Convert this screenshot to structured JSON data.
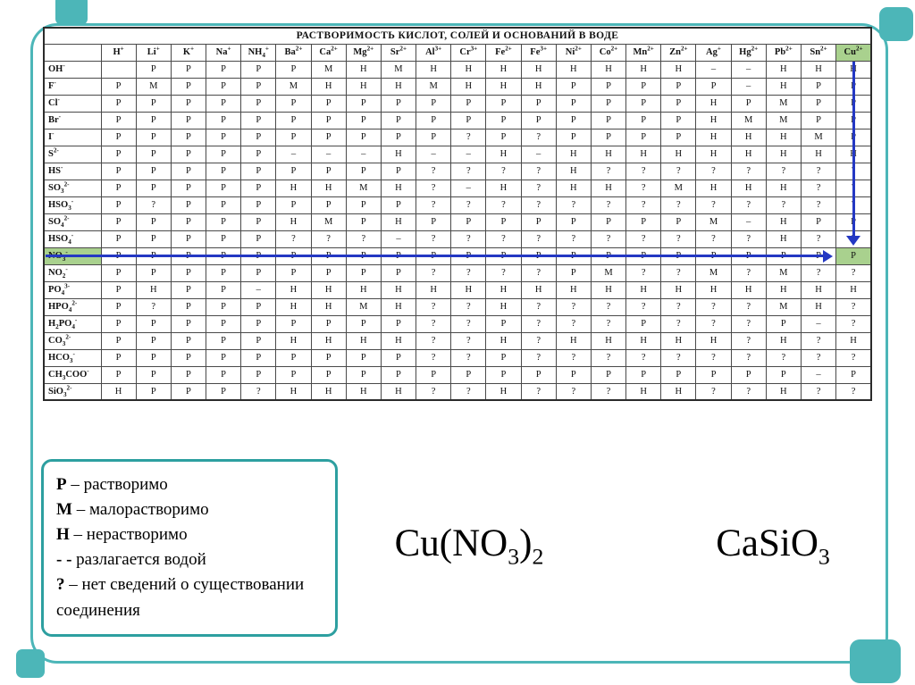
{
  "table": {
    "title": "РАСТВОРИМОСТЬ КИСЛОТ, СОЛЕЙ И ОСНОВАНИЙ В ВОДЕ",
    "columns": [
      "H^+^",
      "Li^+^",
      "K^+^",
      "Na^+^",
      "NH_4_^+^",
      "Ba^2+^",
      "Ca^2+^",
      "Mg^2+^",
      "Sr^2+^",
      "Al^3+^",
      "Cr^3+^",
      "Fe^2+^",
      "Fe^3+^",
      "Ni^2+^",
      "Co^2+^",
      "Mn^2+^",
      "Zn^2+^",
      "Ag^+^",
      "Hg^2+^",
      "Pb^2+^",
      "Sn^2+^",
      "Cu^2+^"
    ],
    "rows": [
      {
        "label": "OH^-^",
        "cells": [
          "",
          "Р",
          "Р",
          "Р",
          "Р",
          "Р",
          "М",
          "Н",
          "М",
          "Н",
          "Н",
          "Н",
          "Н",
          "Н",
          "Н",
          "Н",
          "Н",
          "–",
          "–",
          "Н",
          "Н",
          "Н"
        ]
      },
      {
        "label": "F^-^",
        "cells": [
          "Р",
          "М",
          "Р",
          "Р",
          "Р",
          "М",
          "Н",
          "Н",
          "Н",
          "М",
          "Н",
          "Н",
          "Н",
          "Р",
          "Р",
          "Р",
          "Р",
          "Р",
          "–",
          "Н",
          "Р",
          "Р"
        ]
      },
      {
        "label": "Cl^-^",
        "cells": [
          "Р",
          "Р",
          "Р",
          "Р",
          "Р",
          "Р",
          "Р",
          "Р",
          "Р",
          "Р",
          "Р",
          "Р",
          "Р",
          "Р",
          "Р",
          "Р",
          "Р",
          "Н",
          "Р",
          "М",
          "Р",
          "Р"
        ]
      },
      {
        "label": "Br^-^",
        "cells": [
          "Р",
          "Р",
          "Р",
          "Р",
          "Р",
          "Р",
          "Р",
          "Р",
          "Р",
          "Р",
          "Р",
          "Р",
          "Р",
          "Р",
          "Р",
          "Р",
          "Р",
          "Н",
          "М",
          "М",
          "Р",
          "Р"
        ]
      },
      {
        "label": "I^-^",
        "cells": [
          "Р",
          "Р",
          "Р",
          "Р",
          "Р",
          "Р",
          "Р",
          "Р",
          "Р",
          "Р",
          "?",
          "Р",
          "?",
          "Р",
          "Р",
          "Р",
          "Р",
          "Н",
          "Н",
          "Н",
          "М",
          "Р"
        ]
      },
      {
        "label": "S^2-^",
        "cells": [
          "Р",
          "Р",
          "Р",
          "Р",
          "Р",
          "–",
          "–",
          "–",
          "Н",
          "–",
          "–",
          "Н",
          "–",
          "Н",
          "Н",
          "Н",
          "Н",
          "Н",
          "Н",
          "Н",
          "Н",
          "Н"
        ]
      },
      {
        "label": "HS^-^",
        "cells": [
          "Р",
          "Р",
          "Р",
          "Р",
          "Р",
          "Р",
          "Р",
          "Р",
          "Р",
          "?",
          "?",
          "?",
          "?",
          "Н",
          "?",
          "?",
          "?",
          "?",
          "?",
          "?",
          "?",
          "?"
        ]
      },
      {
        "label": "SO_3_^2-^",
        "cells": [
          "Р",
          "Р",
          "Р",
          "Р",
          "Р",
          "Н",
          "Н",
          "М",
          "Н",
          "?",
          "–",
          "Н",
          "?",
          "Н",
          "Н",
          "?",
          "М",
          "Н",
          "Н",
          "Н",
          "?",
          "?"
        ]
      },
      {
        "label": "HSO_3_^-^",
        "cells": [
          "Р",
          "?",
          "Р",
          "Р",
          "Р",
          "Р",
          "Р",
          "Р",
          "Р",
          "?",
          "?",
          "?",
          "?",
          "?",
          "?",
          "?",
          "?",
          "?",
          "?",
          "?",
          "?",
          "?"
        ]
      },
      {
        "label": "SO_4_^2-^",
        "cells": [
          "Р",
          "Р",
          "Р",
          "Р",
          "Р",
          "Н",
          "М",
          "Р",
          "Н",
          "Р",
          "Р",
          "Р",
          "Р",
          "Р",
          "Р",
          "Р",
          "Р",
          "М",
          "–",
          "Н",
          "Р",
          "Р"
        ]
      },
      {
        "label": "HSO_4_^-^",
        "cells": [
          "Р",
          "Р",
          "Р",
          "Р",
          "Р",
          "?",
          "?",
          "?",
          "–",
          "?",
          "?",
          "?",
          "?",
          "?",
          "?",
          "?",
          "?",
          "?",
          "?",
          "Н",
          "?",
          "?"
        ]
      },
      {
        "label": "NO_3_^-^",
        "cells": [
          "Р",
          "Р",
          "Р",
          "Р",
          "Р",
          "Р",
          "Р",
          "Р",
          "Р",
          "Р",
          "Р",
          "Р",
          "Р",
          "Р",
          "Р",
          "Р",
          "Р",
          "Р",
          "Р",
          "Р",
          "Р",
          "Р"
        ]
      },
      {
        "label": "NO_2_^-^",
        "cells": [
          "Р",
          "Р",
          "Р",
          "Р",
          "Р",
          "Р",
          "Р",
          "Р",
          "Р",
          "?",
          "?",
          "?",
          "?",
          "Р",
          "М",
          "?",
          "?",
          "М",
          "?",
          "М",
          "?",
          "?"
        ]
      },
      {
        "label": "PO_4_^3-^",
        "cells": [
          "Р",
          "Н",
          "Р",
          "Р",
          "–",
          "Н",
          "Н",
          "Н",
          "Н",
          "Н",
          "Н",
          "Н",
          "Н",
          "Н",
          "Н",
          "Н",
          "Н",
          "Н",
          "Н",
          "Н",
          "Н",
          "Н"
        ]
      },
      {
        "label": "HPO_4_^2-^",
        "cells": [
          "Р",
          "?",
          "Р",
          "Р",
          "Р",
          "Н",
          "Н",
          "М",
          "Н",
          "?",
          "?",
          "Н",
          "?",
          "?",
          "?",
          "?",
          "?",
          "?",
          "?",
          "М",
          "Н",
          "?"
        ]
      },
      {
        "label": "H_2_PO_4_^-^",
        "cells": [
          "Р",
          "Р",
          "Р",
          "Р",
          "Р",
          "Р",
          "Р",
          "Р",
          "Р",
          "?",
          "?",
          "Р",
          "?",
          "?",
          "?",
          "Р",
          "?",
          "?",
          "?",
          "Р",
          "–",
          "?"
        ]
      },
      {
        "label": "CO_3_^2-^",
        "cells": [
          "Р",
          "Р",
          "Р",
          "Р",
          "Р",
          "Н",
          "Н",
          "Н",
          "Н",
          "?",
          "?",
          "Н",
          "?",
          "Н",
          "Н",
          "Н",
          "Н",
          "Н",
          "?",
          "Н",
          "?",
          "Н"
        ]
      },
      {
        "label": "HCO_3_^-^",
        "cells": [
          "Р",
          "Р",
          "Р",
          "Р",
          "Р",
          "Р",
          "Р",
          "Р",
          "Р",
          "?",
          "?",
          "Р",
          "?",
          "?",
          "?",
          "?",
          "?",
          "?",
          "?",
          "?",
          "?",
          "?"
        ]
      },
      {
        "label": "CH_3_COO^-^",
        "cells": [
          "Р",
          "Р",
          "Р",
          "Р",
          "Р",
          "Р",
          "Р",
          "Р",
          "Р",
          "Р",
          "Р",
          "Р",
          "Р",
          "Р",
          "Р",
          "Р",
          "Р",
          "Р",
          "Р",
          "Р",
          "–",
          "Р"
        ]
      },
      {
        "label": "SiO_3_^2-^",
        "cells": [
          "Н",
          "Р",
          "Р",
          "Р",
          "?",
          "Н",
          "Н",
          "Н",
          "Н",
          "?",
          "?",
          "Н",
          "?",
          "?",
          "?",
          "Н",
          "Н",
          "?",
          "?",
          "Н",
          "?",
          "?"
        ]
      }
    ],
    "highlight": {
      "row": 11,
      "col": 21,
      "cell_value": "Р"
    }
  },
  "legend": {
    "items": [
      {
        "symbol": "Р",
        "text": "– растворимо"
      },
      {
        "symbol": "М",
        "text": "– малорастворимо"
      },
      {
        "symbol": "Н",
        "text": "– нерастворимо"
      },
      {
        "symbol": "- -",
        "text": "разлагается водой"
      },
      {
        "symbol": "?",
        "text": "– нет сведений о существовании соединения"
      }
    ]
  },
  "formulas": {
    "left": "Cu(NO_3_)_2_",
    "right": "CaSiO_3_"
  },
  "colors": {
    "teal": "#4cb6b8",
    "arrow": "#2438c3",
    "highlight": "#a9d18e"
  }
}
